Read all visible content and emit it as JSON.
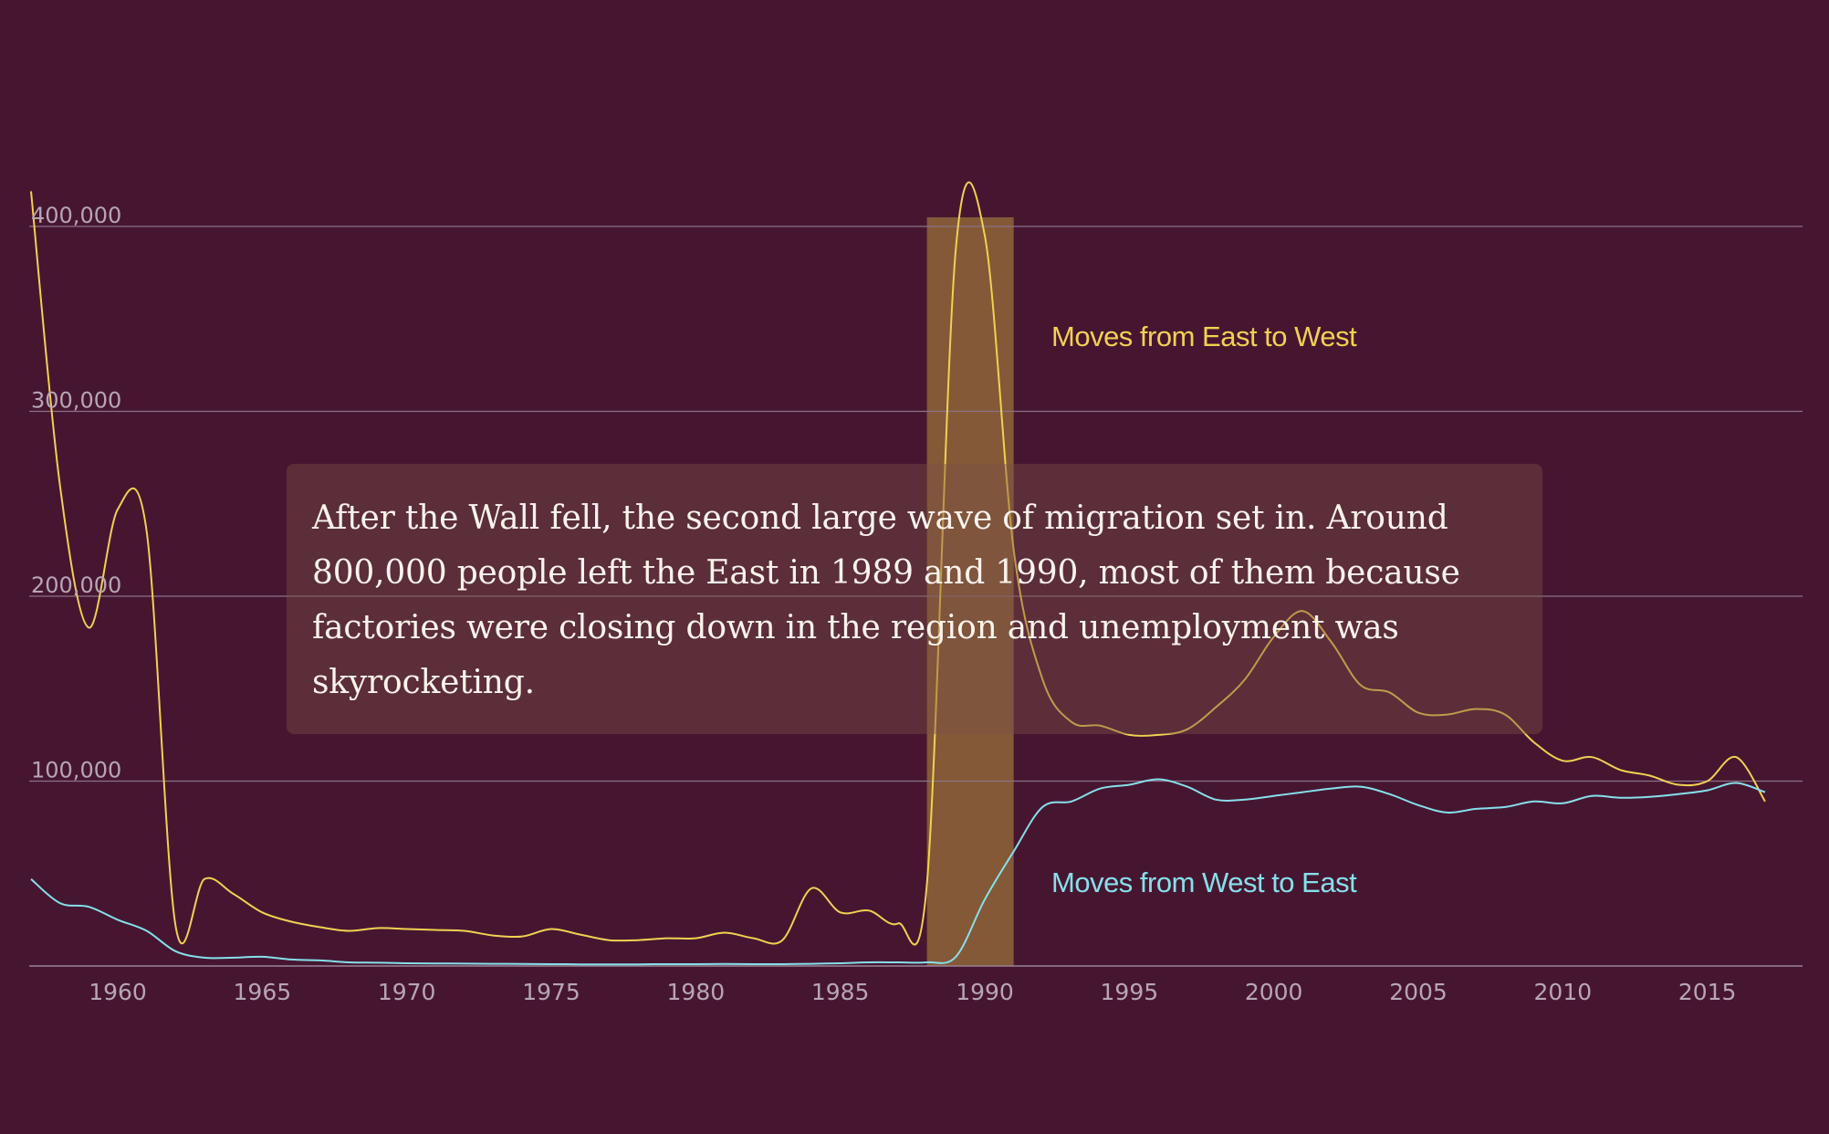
{
  "annotation": {
    "text": "After the Wall fell, the second large wave of migration set in. Around 800,000 people left the East in 1989 and 1990, most of them because factories were closing down in the region and unemployment was skyrocketing."
  },
  "chart_data": {
    "type": "line",
    "title": "",
    "xlabel": "",
    "ylabel": "",
    "xlim": [
      1957,
      2017
    ],
    "ylim": [
      0,
      400000
    ],
    "grid": true,
    "y_ticks": [
      {
        "value": 100000,
        "label": "100,000"
      },
      {
        "value": 200000,
        "label": "200,000"
      },
      {
        "value": 300000,
        "label": "300,000"
      },
      {
        "value": 400000,
        "label": "400,000"
      }
    ],
    "x_ticks": [
      {
        "value": 1960,
        "label": "1960"
      },
      {
        "value": 1965,
        "label": "1965"
      },
      {
        "value": 1970,
        "label": "1970"
      },
      {
        "value": 1975,
        "label": "1975"
      },
      {
        "value": 1980,
        "label": "1980"
      },
      {
        "value": 1985,
        "label": "1985"
      },
      {
        "value": 1990,
        "label": "1990"
      },
      {
        "value": 1995,
        "label": "1995"
      },
      {
        "value": 2000,
        "label": "2000"
      },
      {
        "value": 2005,
        "label": "2005"
      },
      {
        "value": 2010,
        "label": "2010"
      },
      {
        "value": 2015,
        "label": "2015"
      }
    ],
    "highlight": {
      "from": 1988,
      "to": 1991,
      "color": "#b8913c"
    },
    "series": [
      {
        "name": "Moves from East to West",
        "color": "#f1d152",
        "label_position": "above",
        "x": [
          1957,
          1958,
          1959,
          1960,
          1961,
          1962,
          1963,
          1964,
          1965,
          1966,
          1967,
          1968,
          1969,
          1970,
          1971,
          1972,
          1973,
          1974,
          1975,
          1976,
          1977,
          1978,
          1979,
          1980,
          1981,
          1982,
          1983,
          1984,
          1985,
          1986,
          1987,
          1988,
          1989,
          1990,
          1991,
          1992,
          1993,
          1994,
          1995,
          1996,
          1997,
          1998,
          1999,
          2000,
          2001,
          2002,
          2003,
          2004,
          2005,
          2006,
          2007,
          2008,
          2009,
          2010,
          2011,
          2012,
          2013,
          2014,
          2015,
          2016,
          2017
        ],
        "values": [
          419000,
          260000,
          183000,
          247000,
          235000,
          22000,
          47000,
          39000,
          29000,
          24000,
          21000,
          19000,
          20500,
          20000,
          19500,
          19000,
          16500,
          16000,
          20000,
          17000,
          14000,
          14000,
          15000,
          15000,
          18000,
          15000,
          14000,
          42000,
          29000,
          30000,
          23000,
          45000,
          388000,
          395000,
          225000,
          155000,
          132000,
          130000,
          125000,
          125000,
          128000,
          140000,
          155000,
          178000,
          192000,
          175000,
          152000,
          148000,
          137000,
          136000,
          139000,
          136000,
          121000,
          111000,
          113000,
          106000,
          103000,
          98000,
          100000,
          113000,
          89000
        ]
      },
      {
        "name": "Moves from West to East",
        "color": "#86e0ea",
        "label_position": "below",
        "x": [
          1957,
          1958,
          1959,
          1960,
          1961,
          1962,
          1963,
          1964,
          1965,
          1966,
          1967,
          1968,
          1969,
          1970,
          1971,
          1972,
          1973,
          1974,
          1975,
          1976,
          1977,
          1978,
          1979,
          1980,
          1981,
          1982,
          1983,
          1984,
          1985,
          1986,
          1987,
          1988,
          1989,
          1990,
          1991,
          1992,
          1993,
          1994,
          1995,
          1996,
          1997,
          1998,
          1999,
          2000,
          2001,
          2002,
          2003,
          2004,
          2005,
          2006,
          2007,
          2008,
          2009,
          2010,
          2011,
          2012,
          2013,
          2014,
          2015,
          2016,
          2017
        ],
        "values": [
          47000,
          34000,
          32000,
          25000,
          19000,
          8000,
          4500,
          4500,
          5000,
          3500,
          3000,
          2000,
          1800,
          1500,
          1400,
          1300,
          1200,
          1100,
          1000,
          900,
          900,
          900,
          1000,
          1000,
          1100,
          1000,
          1000,
          1200,
          1500,
          2000,
          2000,
          2000,
          5000,
          36000,
          62000,
          86000,
          89000,
          96000,
          98000,
          101000,
          97000,
          90000,
          90000,
          92000,
          94000,
          96000,
          97000,
          93000,
          87000,
          83000,
          85000,
          86000,
          89000,
          88000,
          92000,
          91000,
          91500,
          93000,
          95000,
          99000,
          94000
        ]
      }
    ]
  }
}
